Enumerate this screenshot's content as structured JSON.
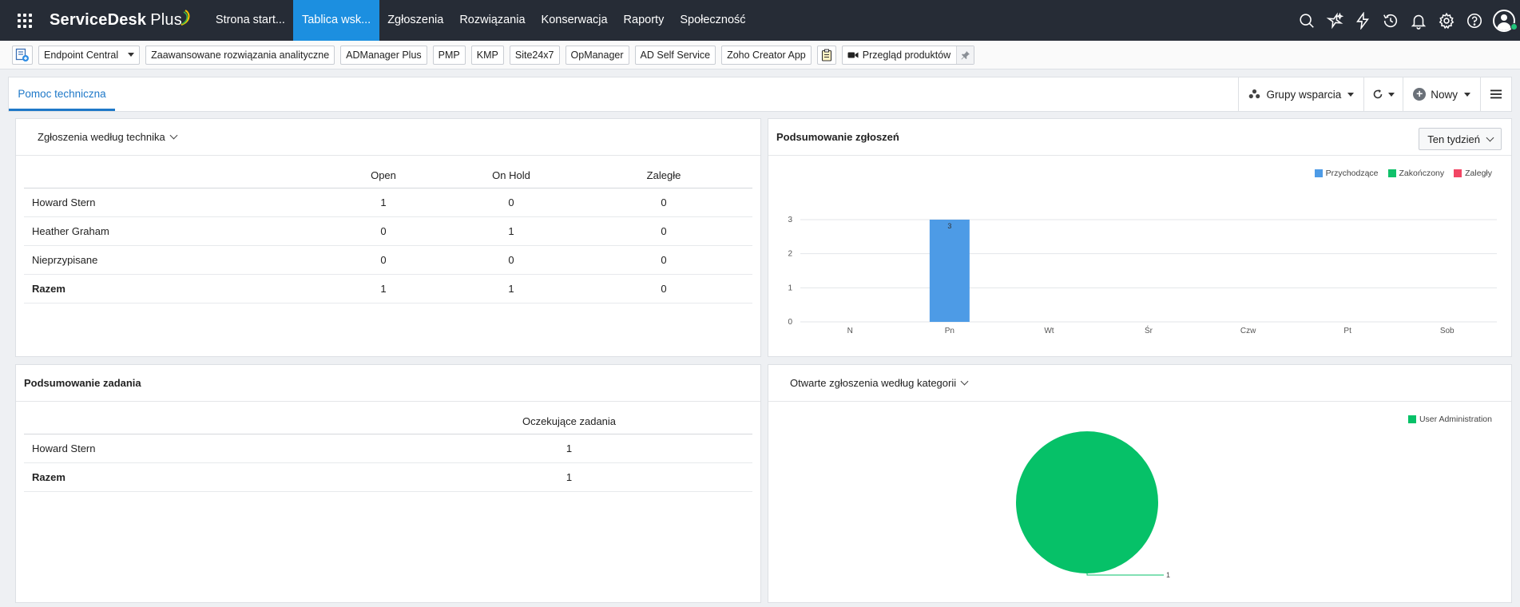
{
  "navbar": {
    "logo_text": "ServiceDesk",
    "logo_plus": "Plus",
    "tabs": [
      {
        "label": "Strona start..."
      },
      {
        "label": "Tablica wsk..."
      },
      {
        "label": "Zgłoszenia"
      },
      {
        "label": "Rozwiązania"
      },
      {
        "label": "Konserwacja"
      },
      {
        "label": "Raporty"
      },
      {
        "label": "Społeczność"
      }
    ],
    "active_tab_index": 1,
    "icons": [
      "search-icon",
      "ai-sparkle-icon",
      "lightning-icon",
      "history-icon",
      "bell-icon",
      "gear-icon",
      "help-icon"
    ]
  },
  "toolbar": {
    "items": [
      {
        "label": "Endpoint Central"
      },
      {
        "label": "Zaawansowane rozwiązania analityczne"
      },
      {
        "label": "ADManager Plus"
      },
      {
        "label": "PMP"
      },
      {
        "label": "KMP"
      },
      {
        "label": "Site24x7"
      },
      {
        "label": "OpManager"
      },
      {
        "label": "AD Self Service"
      },
      {
        "label": "Zoho Creator App"
      }
    ],
    "review_label": "Przegląd produktów"
  },
  "dashboard": {
    "tab_label": "Pomoc techniczna",
    "groups_label": "Grupy wsparcia",
    "new_label": "Nowy"
  },
  "tech_widget": {
    "title": "Zgłoszenia według technika",
    "columns": [
      "Open",
      "On Hold",
      "Zaległe"
    ],
    "rows": [
      {
        "name": "Howard Stern",
        "open": "1",
        "hold": "0",
        "overdue": "0"
      },
      {
        "name": "Heather Graham",
        "open": "0",
        "hold": "1",
        "overdue": "0"
      },
      {
        "name": "Nieprzypisane",
        "open": "0",
        "hold": "0",
        "overdue": "0"
      }
    ],
    "total": {
      "name": "Razem",
      "open": "1",
      "hold": "1",
      "overdue": "0"
    }
  },
  "summary_widget": {
    "title": "Podsumowanie zgłoszeń",
    "period_label": "Ten tydzień",
    "chart_data": {
      "type": "bar",
      "categories": [
        "N",
        "Pn",
        "Wt",
        "Śr",
        "Czw",
        "Pt",
        "Sob"
      ],
      "series": [
        {
          "name": "Przychodzące",
          "values": [
            0,
            3,
            0,
            0,
            0,
            0,
            0
          ],
          "color": "#4d9be6"
        },
        {
          "name": "Zakończony",
          "values": [
            0,
            0,
            0,
            0,
            0,
            0,
            0
          ],
          "color": "#10c16a"
        },
        {
          "name": "Zaległy",
          "values": [
            0,
            0,
            0,
            0,
            0,
            0,
            0
          ],
          "color": "#f24664"
        }
      ],
      "yticks": [
        "0",
        "1",
        "2",
        "3"
      ],
      "ylim": [
        0,
        3
      ],
      "data_labels": [
        "3"
      ],
      "legend": "top-right",
      "grid": true
    }
  },
  "task_widget": {
    "title": "Podsumowanie zadania",
    "column": "Oczekujące zadania",
    "rows": [
      {
        "name": "Howard Stern",
        "value": "1"
      }
    ],
    "total": {
      "name": "Razem",
      "value": "1"
    }
  },
  "category_widget": {
    "title": "Otwarte zgłoszenia według kategorii",
    "chart_data": {
      "type": "pie",
      "labels": [
        "User Administration"
      ],
      "values": [
        1
      ],
      "colors": [
        "#06c168"
      ],
      "data_labels": [
        "1"
      ],
      "legend": "top-right"
    }
  }
}
